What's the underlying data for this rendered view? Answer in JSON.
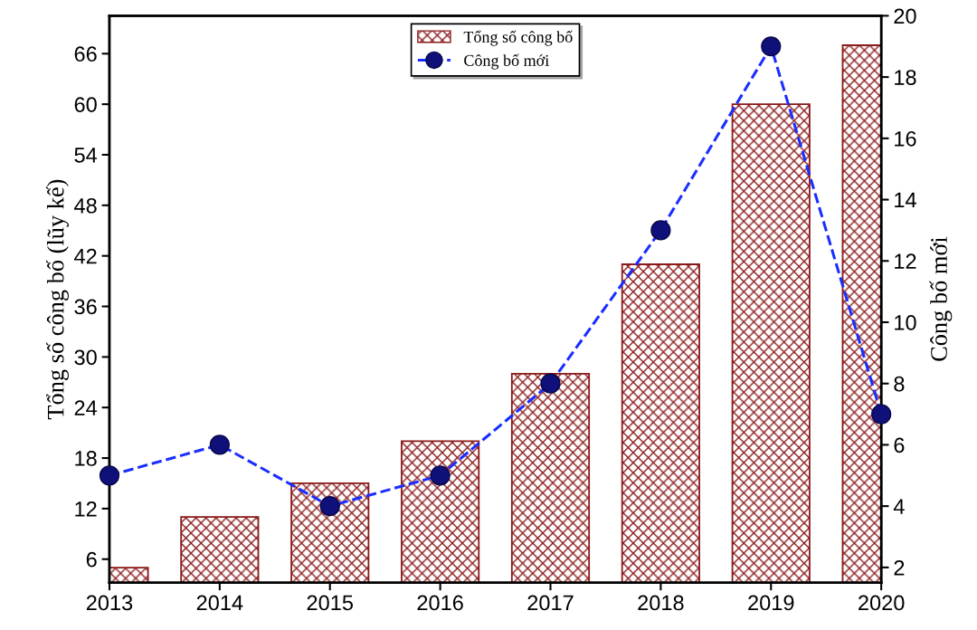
{
  "chart_data": {
    "type": "bar",
    "x": [
      2013,
      2014,
      2015,
      2016,
      2017,
      2018,
      2019,
      2020
    ],
    "series": [
      {
        "name": "Tổng số công bố",
        "color": "#8b1a1a",
        "values": [
          5,
          11,
          15,
          20,
          28,
          41,
          60,
          67
        ]
      },
      {
        "name": "Công bố mới",
        "type": "line",
        "axis": "y2",
        "color": "#1a2eff",
        "marker": "circle",
        "line_style": "dashed",
        "values": [
          5,
          6,
          4,
          5,
          8,
          13,
          19,
          7
        ]
      }
    ],
    "ylabel": "Tổng số công bố (lũy kế)",
    "y2label": "Công bố mới",
    "xlim": [
      2013,
      2020
    ],
    "xticks": [
      2013,
      2014,
      2015,
      2016,
      2017,
      2018,
      2019,
      2020
    ],
    "ylim": [
      3.2,
      70.5
    ],
    "yticks": [
      6,
      12,
      18,
      24,
      30,
      36,
      42,
      48,
      54,
      60,
      66
    ],
    "y2lim": [
      1.5,
      20
    ],
    "y2ticks": [
      2,
      4,
      6,
      8,
      10,
      12,
      14,
      16,
      18,
      20
    ],
    "legend": "top",
    "grid": false
  }
}
